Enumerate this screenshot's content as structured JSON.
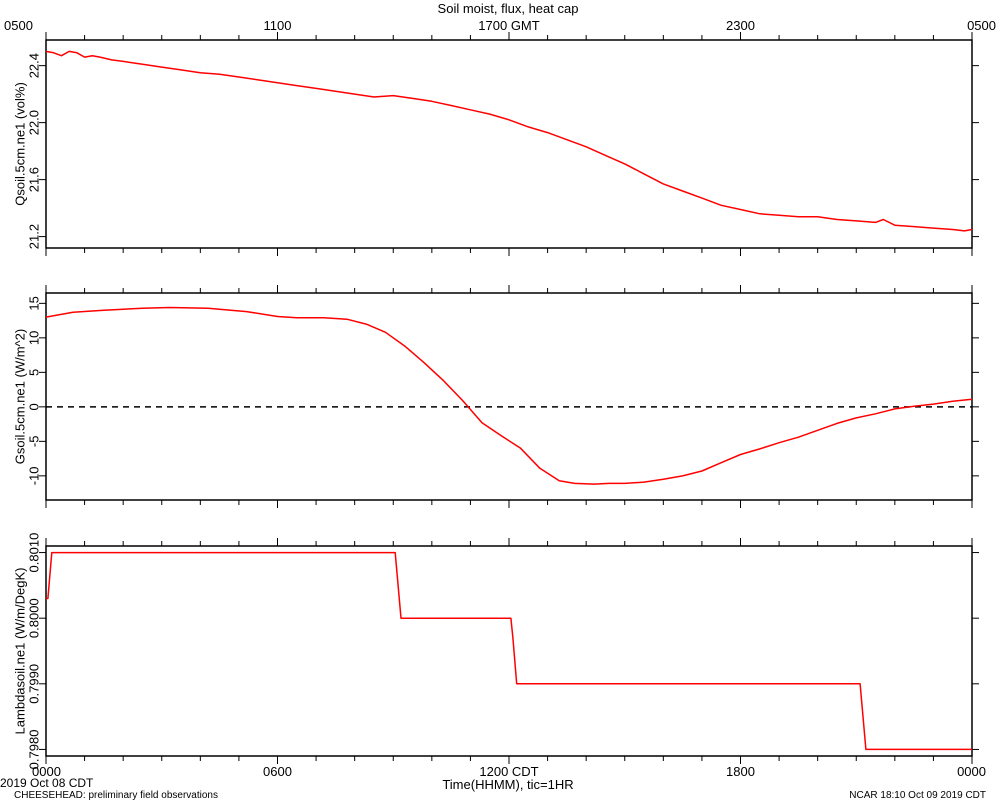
{
  "chart_data": {
    "type": "line",
    "title": "Soil moist, flux, heat cap",
    "top_axis": {
      "ticks": [
        "0500",
        "1100",
        "1700 GMT",
        "2300",
        "0500"
      ]
    },
    "bottom_axis": {
      "ticks": [
        "0000",
        "0600",
        "1200 CDT",
        "1800",
        "0000"
      ],
      "xlabel": "Time(HHMM), tic=1HR",
      "xlim": [
        0,
        24
      ]
    },
    "panels": [
      {
        "ylabel": "Qsoil.5cm.ne1 (vol%)",
        "ylim": [
          21.12,
          22.58
        ],
        "yticks": [
          "21.2",
          "21.6",
          "22.0",
          "22.4"
        ],
        "series": [
          {
            "color": "#ff0000",
            "x": [
              0,
              0.2,
              0.4,
              0.6,
              0.8,
              1.0,
              1.2,
              1.4,
              1.7,
              2.0,
              2.5,
              3.0,
              3.5,
              4.0,
              4.5,
              5.0,
              5.5,
              6.0,
              6.5,
              7.0,
              7.5,
              8.0,
              8.5,
              9.0,
              9.5,
              10.0,
              10.5,
              11.0,
              11.5,
              12.0,
              12.5,
              13.0,
              13.5,
              14.0,
              14.5,
              15.0,
              15.5,
              16.0,
              16.5,
              17.0,
              17.5,
              18.0,
              18.5,
              19.0,
              19.5,
              20.0,
              20.5,
              21.0,
              21.5,
              21.7,
              22.0,
              22.5,
              23.0,
              23.5,
              23.8,
              24.0
            ],
            "y": [
              22.5,
              22.49,
              22.47,
              22.5,
              22.49,
              22.46,
              22.47,
              22.46,
              22.44,
              22.43,
              22.41,
              22.39,
              22.37,
              22.35,
              22.34,
              22.32,
              22.3,
              22.28,
              22.26,
              22.24,
              22.22,
              22.2,
              22.18,
              22.19,
              22.17,
              22.15,
              22.12,
              22.09,
              22.06,
              22.02,
              21.97,
              21.93,
              21.88,
              21.83,
              21.77,
              21.71,
              21.64,
              21.57,
              21.52,
              21.47,
              21.42,
              21.39,
              21.36,
              21.35,
              21.34,
              21.34,
              21.32,
              21.31,
              21.3,
              21.32,
              21.28,
              21.27,
              21.26,
              21.25,
              21.24,
              21.25
            ]
          }
        ]
      },
      {
        "ylabel": "Gsoil.5cm.ne1 (W/m^2)",
        "ylim": [
          -13.5,
          16.5
        ],
        "yticks": [
          "-10",
          "-5",
          "0",
          "5",
          "10",
          "15"
        ],
        "reference_line": 0,
        "series": [
          {
            "color": "#ff0000",
            "x": [
              0,
              0.7,
              1.5,
              2.5,
              3.2,
              4.2,
              5.2,
              6.0,
              6.5,
              7.2,
              7.8,
              8.3,
              8.8,
              9.3,
              9.8,
              10.3,
              10.8,
              11.3,
              11.8,
              12.3,
              12.8,
              13.3,
              13.7,
              14.2,
              14.6,
              15.0,
              15.5,
              16.0,
              16.5,
              17.0,
              17.5,
              18.0,
              18.5,
              19.0,
              19.5,
              20.0,
              20.5,
              21.0,
              21.5,
              22.0,
              22.5,
              23.0,
              23.5,
              24.0
            ],
            "y": [
              13,
              13.7,
              14,
              14.3,
              14.4,
              14.3,
              13.8,
              13.1,
              12.9,
              12.9,
              12.7,
              12,
              10.8,
              8.8,
              6.4,
              3.8,
              0.9,
              -2.3,
              -4.2,
              -6,
              -8.9,
              -10.7,
              -11.1,
              -11.2,
              -11.1,
              -11.1,
              -10.9,
              -10.5,
              -10,
              -9.3,
              -8.1,
              -6.9,
              -6.1,
              -5.2,
              -4.4,
              -3.4,
              -2.4,
              -1.6,
              -1,
              -0.3,
              0.1,
              0.4,
              0.8,
              1.1
            ]
          }
        ]
      },
      {
        "ylabel": "Lambdasoil.ne1 (W/m/DegK)",
        "ylim": [
          0.7979,
          0.8011
        ],
        "yticks": [
          "0.7980",
          "0.7990",
          "0.8000",
          "0.8010"
        ],
        "series": [
          {
            "color": "#ff0000",
            "x": [
              0,
              0.05,
              0.15,
              9.05,
              9.2,
              12.05,
              12.1,
              12.2,
              21.1,
              21.25,
              24.0
            ],
            "y": [
              0.8003,
              0.8003,
              0.801,
              0.801,
              0.8,
              0.8,
              0.7997,
              0.799,
              0.799,
              0.798,
              0.798
            ]
          }
        ]
      }
    ]
  },
  "footer": {
    "start_date": "2019 Oct 08 CDT",
    "project": "CHEESEHEAD: preliminary field observations",
    "credit": "NCAR 18:10 Oct 09 2019 CDT"
  }
}
